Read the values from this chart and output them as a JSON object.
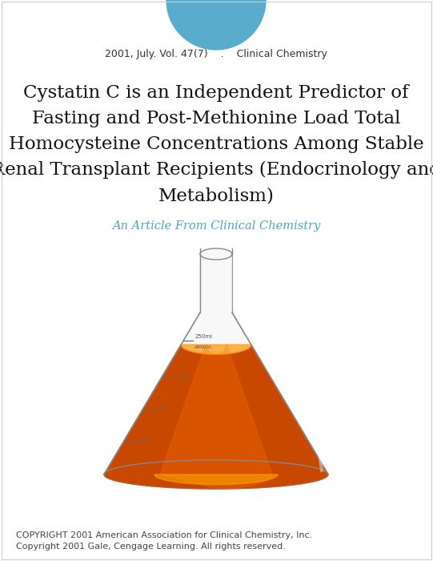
{
  "bg_color": "#ffffff",
  "title_lines": [
    "Cystatin C is an Independent Predictor of",
    "Fasting and Post-Methionine Load Total",
    "Homocysteine Concentrations Among Stable",
    "Renal Transplant Recipients (Endocrinology and",
    "Metabolism)"
  ],
  "subtitle_text": "An Article From Clinical Chemistry",
  "meta_text": "2001, July. Vol. 47(7)    .    Clinical Chemistry",
  "copyright_line1": "COPYRIGHT 2001 American Association for Clinical Chemistry, Inc.",
  "copyright_line2": "Copyright 2001 Gale, Cengage Learning. All rights reserved.",
  "title_fontsize": 16.5,
  "subtitle_fontsize": 10.5,
  "meta_fontsize": 9,
  "copyright_fontsize": 8,
  "title_color": "#111111",
  "subtitle_color": "#4da6c8",
  "meta_color": "#333333",
  "copyright_color": "#444444",
  "circle_color": "#5aaccc"
}
